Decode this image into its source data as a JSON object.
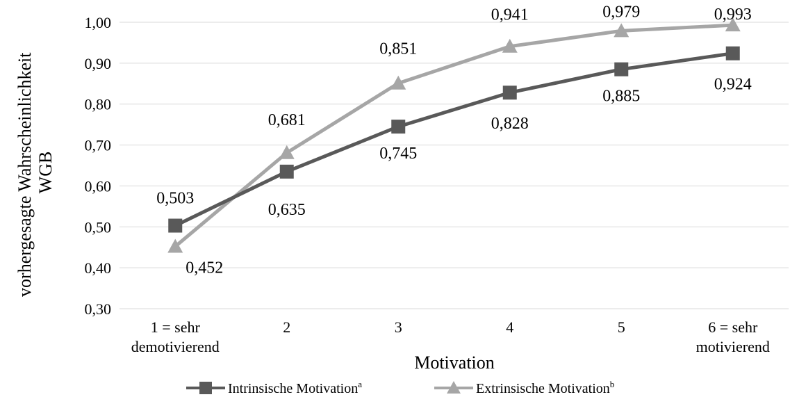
{
  "chart_data": {
    "type": "line",
    "xlabel": "Motivation",
    "ylabel_lines": [
      "vorhergesagte Wahrscheinlichkeit",
      "WGB"
    ],
    "categories": [
      [
        "1 = sehr",
        "demotivierend"
      ],
      [
        "2"
      ],
      [
        "3"
      ],
      [
        "4"
      ],
      [
        "5"
      ],
      [
        "6 = sehr",
        "motivierend"
      ]
    ],
    "ylim": [
      0.3,
      1.0
    ],
    "yticks": [
      "0,30",
      "0,40",
      "0,50",
      "0,60",
      "0,70",
      "0,80",
      "0,90",
      "1,00"
    ],
    "grid": true,
    "legend_position": "bottom",
    "series": [
      {
        "name": "Intrinsische Motivation",
        "name_sup": "a",
        "color": "#595959",
        "marker": "square",
        "values": [
          0.503,
          0.635,
          0.745,
          0.828,
          0.885,
          0.924
        ],
        "labels": [
          "0,503",
          "0,635",
          "0,745",
          "0,828",
          "0,885",
          "0,924"
        ]
      },
      {
        "name": "Extrinsische Motivation",
        "name_sup": "b",
        "color": "#a6a6a6",
        "marker": "triangle",
        "values": [
          0.452,
          0.681,
          0.851,
          0.941,
          0.979,
          0.993
        ],
        "labels": [
          "0,452",
          "0,681",
          "0,851",
          "0,941",
          "0,979",
          "0,993"
        ]
      }
    ]
  }
}
